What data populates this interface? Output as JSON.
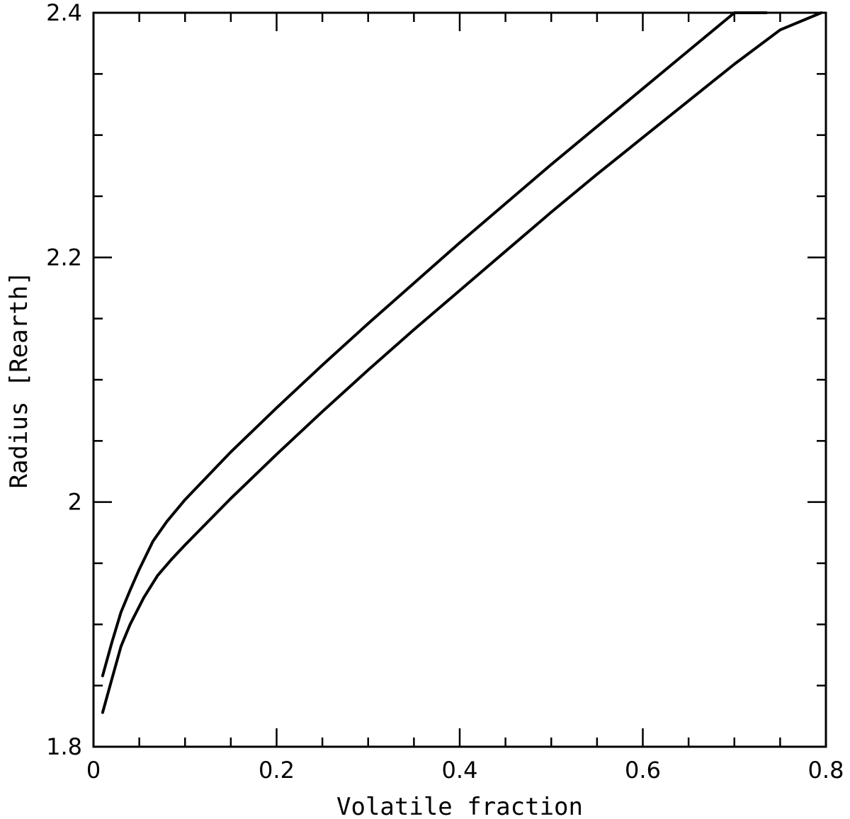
{
  "chart_data": {
    "type": "line",
    "title": "",
    "xlabel": "Volatile fraction",
    "ylabel": "Radius [Rearth]",
    "xlim": [
      0,
      0.8
    ],
    "ylim": [
      1.8,
      2.4
    ],
    "x_ticks_major": [
      0,
      0.2,
      0.4,
      0.6,
      0.8
    ],
    "x_tick_labels": [
      "0",
      "0.2",
      "0.4",
      "0.6",
      "0.8"
    ],
    "y_ticks_major": [
      1.8,
      2.0,
      2.2,
      2.4
    ],
    "y_tick_labels": [
      "1.8",
      "2",
      "2.2",
      "2.4"
    ],
    "x_minor_step": 0.05,
    "y_minor_step": 0.05,
    "grid": false,
    "legend": "none",
    "line_color": "#000000",
    "series": [
      {
        "x": [
          0.01,
          0.02,
          0.03,
          0.04,
          0.05,
          0.065,
          0.08,
          0.1,
          0.15,
          0.2,
          0.25,
          0.3,
          0.35,
          0.4,
          0.45,
          0.5,
          0.55,
          0.6,
          0.65,
          0.7,
          0.735
        ],
        "y": [
          1.858,
          1.885,
          1.91,
          1.928,
          1.945,
          1.968,
          1.984,
          2.002,
          2.041,
          2.077,
          2.112,
          2.146,
          2.179,
          2.212,
          2.244,
          2.276,
          2.307,
          2.338,
          2.369,
          2.4,
          2.4
        ]
      },
      {
        "x": [
          0.01,
          0.02,
          0.03,
          0.04,
          0.055,
          0.07,
          0.085,
          0.1,
          0.15,
          0.2,
          0.25,
          0.3,
          0.35,
          0.4,
          0.45,
          0.5,
          0.55,
          0.6,
          0.65,
          0.7,
          0.75,
          0.795
        ],
        "y": [
          1.828,
          1.855,
          1.882,
          1.9,
          1.922,
          1.94,
          1.953,
          1.965,
          2.003,
          2.039,
          2.074,
          2.108,
          2.141,
          2.173,
          2.205,
          2.237,
          2.268,
          2.298,
          2.328,
          2.358,
          2.386,
          2.4
        ]
      }
    ]
  }
}
